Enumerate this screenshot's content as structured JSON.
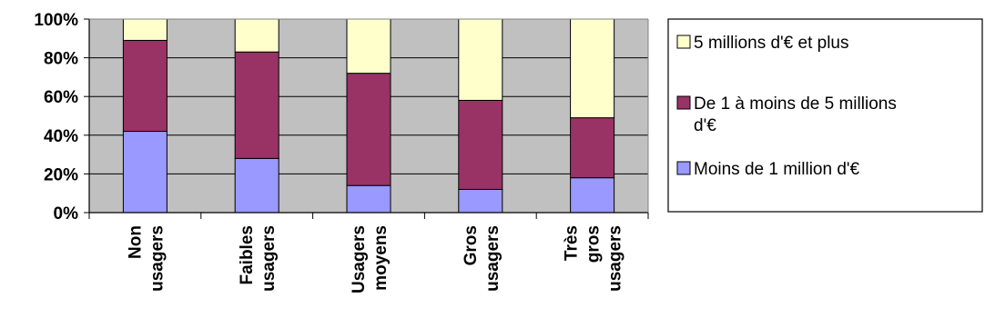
{
  "chart_data": {
    "type": "bar",
    "stacked": true,
    "normalized": true,
    "categories": [
      [
        "Non",
        "usagers"
      ],
      [
        "Faibles",
        "usagers"
      ],
      [
        "Usagers",
        "moyens"
      ],
      [
        "Gros",
        "usagers"
      ],
      [
        "Très",
        "gros",
        "usagers"
      ]
    ],
    "series": [
      {
        "name": "Moins de 1 million d'€",
        "color": "#9999ff",
        "values": [
          42,
          28,
          14,
          12,
          18
        ]
      },
      {
        "name": "De 1 à moins de 5 millions d'€",
        "color": "#993366",
        "values": [
          47,
          55,
          58,
          46,
          31
        ]
      },
      {
        "name": "5 millions d'€ et plus",
        "color": "#ffffcc",
        "values": [
          11,
          17,
          28,
          42,
          51
        ]
      }
    ],
    "y_ticks": [
      "0%",
      "20%",
      "40%",
      "60%",
      "80%",
      "100%"
    ],
    "ylim": [
      0,
      100
    ],
    "plot_background": "#c0c0c0",
    "grid": true,
    "legend": {
      "position": "right",
      "entries": [
        {
          "lines": [
            "5 millions d'€ et plus"
          ],
          "series": 2
        },
        {
          "lines": [
            "De 1 à moins de 5 millions",
            "d'€"
          ],
          "series": 1
        },
        {
          "lines": [
            "Moins de 1 million d'€"
          ],
          "series": 0
        }
      ]
    },
    "title": "",
    "xlabel": "",
    "ylabel": ""
  }
}
